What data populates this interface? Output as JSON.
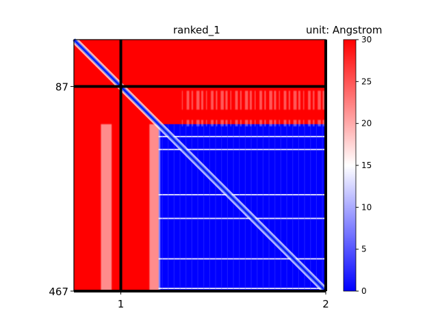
{
  "chart_data": {
    "type": "heatmap",
    "title": "ranked_1",
    "colorbar_title": "unit: Angstrom",
    "colormap": "bwr",
    "colormap_colors": [
      "#0000ff",
      "#ffffff",
      "#ff0000"
    ],
    "value_range": [
      0,
      30
    ],
    "colorbar_ticks": [
      "0",
      "5",
      "10",
      "15",
      "20",
      "25",
      "30"
    ],
    "n_residues": 467,
    "chain_boundary": 87,
    "x_ticks": [
      {
        "label": "1",
        "pos": 87
      },
      {
        "label": "2",
        "pos": 467
      }
    ],
    "y_ticks": [
      {
        "label": "87",
        "pos": 87
      },
      {
        "label": "467",
        "pos": 467
      }
    ],
    "blue_block_start": 157,
    "flexible_region": [
      87,
      157
    ],
    "white_stripes_in_block": [
      180,
      204,
      288,
      332,
      407,
      462
    ],
    "vertical_white_bands": [
      [
        50,
        70
      ],
      [
        140,
        160
      ]
    ]
  }
}
